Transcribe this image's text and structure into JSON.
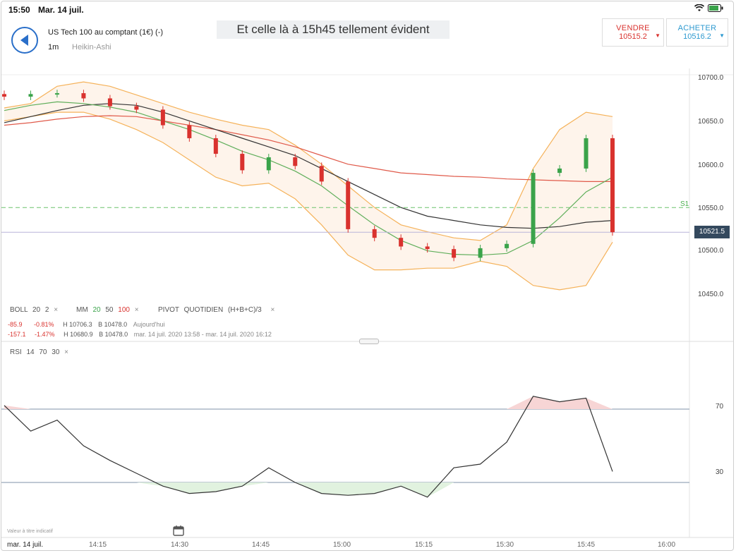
{
  "status": {
    "time": "15:50",
    "date": "Mar. 14 juil."
  },
  "instrument": {
    "name": "US Tech 100 au comptant (1€) (-)",
    "timeframe": "1m",
    "chart_type": "Heikin-Ashi"
  },
  "caption": "Et celle là à 15h45 tellement évident",
  "sell": {
    "label": "VENDRE",
    "price": "10515.2"
  },
  "buy": {
    "label": "ACHETER",
    "price": "10516.2"
  },
  "yaxis": {
    "ticks": [
      "10700.0",
      "10650.0",
      "10600.0",
      "10550.0",
      "10500.0",
      "10450.0"
    ],
    "last_price": "10521.5",
    "pivot_label": "S1"
  },
  "rsi_axis": {
    "ticks": [
      "70",
      "30"
    ]
  },
  "xaxis": {
    "date": "mar. 14 juil.",
    "ticks": [
      "14:15",
      "14:30",
      "14:45",
      "15:00",
      "15:15",
      "15:30",
      "15:45",
      "16:00"
    ]
  },
  "legend": {
    "boll": {
      "name": "BOLL",
      "p1": "20",
      "p2": "2"
    },
    "mm": {
      "name": "MM",
      "p1": "20",
      "p2": "50",
      "p3": "100"
    },
    "pivot": {
      "name": "PIVOT",
      "mode": "QUOTIDIEN",
      "formula": "(H+B+C)/3"
    },
    "rsi": {
      "name": "RSI",
      "p1": "14",
      "p2": "70",
      "p3": "30"
    },
    "close": "×"
  },
  "info": {
    "row1": {
      "chg": "-85.9",
      "pct": "-0.81%",
      "high": "H 10706.3",
      "low": "B 10478.0",
      "period": "Aujourd'hui"
    },
    "row2": {
      "chg": "-157.1",
      "pct": "-1.47%",
      "high": "H 10680.9",
      "low": "B 10478.0",
      "period": "mar. 14 juil. 2020 13:58 - mar. 14 juil. 2020 16:12"
    }
  },
  "footer_note": "Valeur à titre indicatif",
  "colors": {
    "up": "#3aa34a",
    "down": "#d9322e",
    "band": "#f5b25a",
    "ma20": "#5fae5a",
    "ma50": "#333333",
    "ma100": "#e05a4a",
    "accent": "#2a6fc9"
  },
  "chart_data": [
    {
      "type": "candlestick",
      "title": "US Tech 100 au comptant (1€) (-)",
      "ylim": [
        10440,
        10720
      ],
      "x": [
        "13:58",
        "14:00",
        "14:05",
        "14:10",
        "14:15",
        "14:20",
        "14:25",
        "14:30",
        "14:35",
        "14:40",
        "14:45",
        "14:50",
        "14:55",
        "15:00",
        "15:05",
        "15:10",
        "15:15",
        "15:20",
        "15:25",
        "15:30",
        "15:35",
        "15:40",
        "15:45",
        "15:50"
      ],
      "close": [
        10678,
        10681,
        10682,
        10676,
        10667,
        10663,
        10645,
        10630,
        10612,
        10593,
        10608,
        10598,
        10580,
        10525,
        10515,
        10505,
        10502,
        10492,
        10503,
        10508,
        10590,
        10595,
        10630,
        10521.5
      ],
      "bollinger_upper": [
        10665,
        10670,
        10690,
        10695,
        10690,
        10680,
        10670,
        10660,
        10652,
        10645,
        10640,
        10622,
        10600,
        10575,
        10550,
        10530,
        10522,
        10515,
        10512,
        10530,
        10595,
        10640,
        10660,
        10655
      ],
      "bollinger_lower": [
        10650,
        10655,
        10660,
        10660,
        10652,
        10640,
        10625,
        10605,
        10585,
        10575,
        10578,
        10560,
        10530,
        10495,
        10478,
        10478,
        10480,
        10480,
        10488,
        10482,
        10460,
        10455,
        10460,
        10510
      ],
      "ma20": [
        10662,
        10668,
        10672,
        10670,
        10666,
        10660,
        10650,
        10640,
        10628,
        10615,
        10605,
        10592,
        10575,
        10552,
        10530,
        10512,
        10500,
        10496,
        10495,
        10497,
        10512,
        10538,
        10568,
        10585
      ],
      "ma50": [
        10648,
        10655,
        10662,
        10668,
        10670,
        10668,
        10660,
        10650,
        10640,
        10630,
        10620,
        10610,
        10595,
        10580,
        10565,
        10550,
        10540,
        10535,
        10530,
        10527,
        10526,
        10528,
        10533,
        10535
      ],
      "ma100": [
        10645,
        10648,
        10652,
        10655,
        10656,
        10655,
        10650,
        10645,
        10640,
        10634,
        10628,
        10620,
        10610,
        10600,
        10595,
        10590,
        10588,
        10586,
        10585,
        10583,
        10582,
        10581,
        10580,
        10580
      ],
      "pivot_s1": 10550
    },
    {
      "type": "line",
      "title": "RSI 14",
      "ylim": [
        0,
        100
      ],
      "x": [
        "13:58",
        "14:00",
        "14:05",
        "14:10",
        "14:15",
        "14:20",
        "14:25",
        "14:30",
        "14:35",
        "14:40",
        "14:45",
        "14:50",
        "14:55",
        "15:00",
        "15:05",
        "15:10",
        "15:15",
        "15:20",
        "15:25",
        "15:30",
        "15:35",
        "15:40",
        "15:45",
        "15:50"
      ],
      "values": [
        72,
        58,
        64,
        50,
        42,
        35,
        28,
        24,
        25,
        28,
        38,
        30,
        24,
        23,
        24,
        28,
        22,
        38,
        40,
        52,
        77,
        74,
        76,
        36
      ],
      "levels": [
        70,
        30
      ]
    }
  ]
}
